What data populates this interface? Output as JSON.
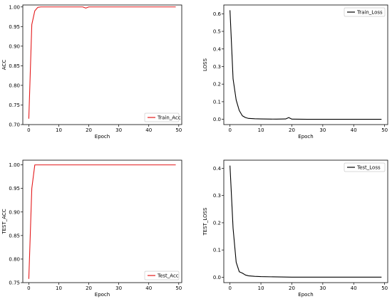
{
  "chart_data": [
    {
      "type": "line",
      "xlabel": "Epoch",
      "ylabel": "ACC",
      "xlim": [
        -2,
        51
      ],
      "ylim": [
        0.7,
        1.005
      ],
      "xticks": [
        0,
        10,
        20,
        30,
        40,
        50
      ],
      "yticks": [
        0.7,
        0.75,
        0.8,
        0.85,
        0.9,
        0.95,
        1.0
      ],
      "ytick_labels": [
        "0.70",
        "0.75",
        "0.80",
        "0.85",
        "0.90",
        "0.95",
        "1.00"
      ],
      "grid": false,
      "legend_position": "bottom-right",
      "series": [
        {
          "name": "Train_Acc",
          "color": "#e41a1c",
          "x": [
            0,
            1,
            2,
            3,
            4,
            5,
            10,
            15,
            17,
            18,
            19,
            20,
            25,
            30,
            35,
            40,
            45,
            49
          ],
          "y": [
            0.715,
            0.955,
            0.99,
            0.999,
            1.0,
            1.0,
            1.0,
            1.0,
            1.0,
            1.0,
            0.997,
            1.0,
            1.0,
            1.0,
            1.0,
            1.0,
            1.0,
            1.0
          ]
        }
      ]
    },
    {
      "type": "line",
      "xlabel": "Epoch",
      "ylabel": "LOSS",
      "xlim": [
        -2,
        51
      ],
      "ylim": [
        -0.03,
        0.65
      ],
      "xticks": [
        0,
        10,
        20,
        30,
        40,
        50
      ],
      "yticks": [
        0.0,
        0.1,
        0.2,
        0.3,
        0.4,
        0.5,
        0.6
      ],
      "ytick_labels": [
        "0.0",
        "0.1",
        "0.2",
        "0.3",
        "0.4",
        "0.5",
        "0.6"
      ],
      "grid": false,
      "legend_position": "top-right",
      "series": [
        {
          "name": "Train_Loss",
          "color": "#000000",
          "x": [
            0,
            1,
            2,
            3,
            4,
            5,
            6,
            8,
            10,
            15,
            18,
            19,
            20,
            25,
            30,
            35,
            40,
            45,
            49
          ],
          "y": [
            0.62,
            0.23,
            0.11,
            0.05,
            0.02,
            0.01,
            0.005,
            0.003,
            0.002,
            0.001,
            0.002,
            0.01,
            0.001,
            0.0,
            0.0,
            0.0,
            0.0,
            0.0,
            0.0
          ]
        }
      ]
    },
    {
      "type": "line",
      "xlabel": "Epoch",
      "ylabel": "TEST_ACC",
      "xlim": [
        -2,
        51
      ],
      "ylim": [
        0.75,
        1.01
      ],
      "xticks": [
        0,
        10,
        20,
        30,
        40,
        50
      ],
      "yticks": [
        0.75,
        0.8,
        0.85,
        0.9,
        0.95,
        1.0
      ],
      "ytick_labels": [
        "0.75",
        "0.80",
        "0.85",
        "0.90",
        "0.95",
        "1.00"
      ],
      "grid": false,
      "legend_position": "bottom-right",
      "series": [
        {
          "name": "Test_Acc",
          "color": "#e41a1c",
          "x": [
            0,
            1,
            2,
            3,
            5,
            10,
            20,
            30,
            40,
            49
          ],
          "y": [
            0.758,
            0.95,
            1.0,
            1.0,
            1.0,
            1.0,
            1.0,
            1.0,
            1.0,
            1.0
          ]
        }
      ]
    },
    {
      "type": "line",
      "xlabel": "Epoch",
      "ylabel": "TEST_LOSS",
      "xlim": [
        -2,
        51
      ],
      "ylim": [
        -0.02,
        0.43
      ],
      "xticks": [
        0,
        10,
        20,
        30,
        40,
        50
      ],
      "yticks": [
        0.0,
        0.1,
        0.2,
        0.3,
        0.4
      ],
      "ytick_labels": [
        "0.0",
        "0.1",
        "0.2",
        "0.3",
        "0.4"
      ],
      "grid": false,
      "legend_position": "top-right",
      "series": [
        {
          "name": "Test_Loss",
          "color": "#000000",
          "x": [
            0,
            1,
            2,
            3,
            4,
            5,
            6,
            8,
            10,
            15,
            20,
            30,
            40,
            49
          ],
          "y": [
            0.41,
            0.18,
            0.055,
            0.02,
            0.015,
            0.008,
            0.005,
            0.003,
            0.002,
            0.001,
            0.0,
            0.0,
            0.0,
            0.0
          ]
        }
      ]
    }
  ]
}
